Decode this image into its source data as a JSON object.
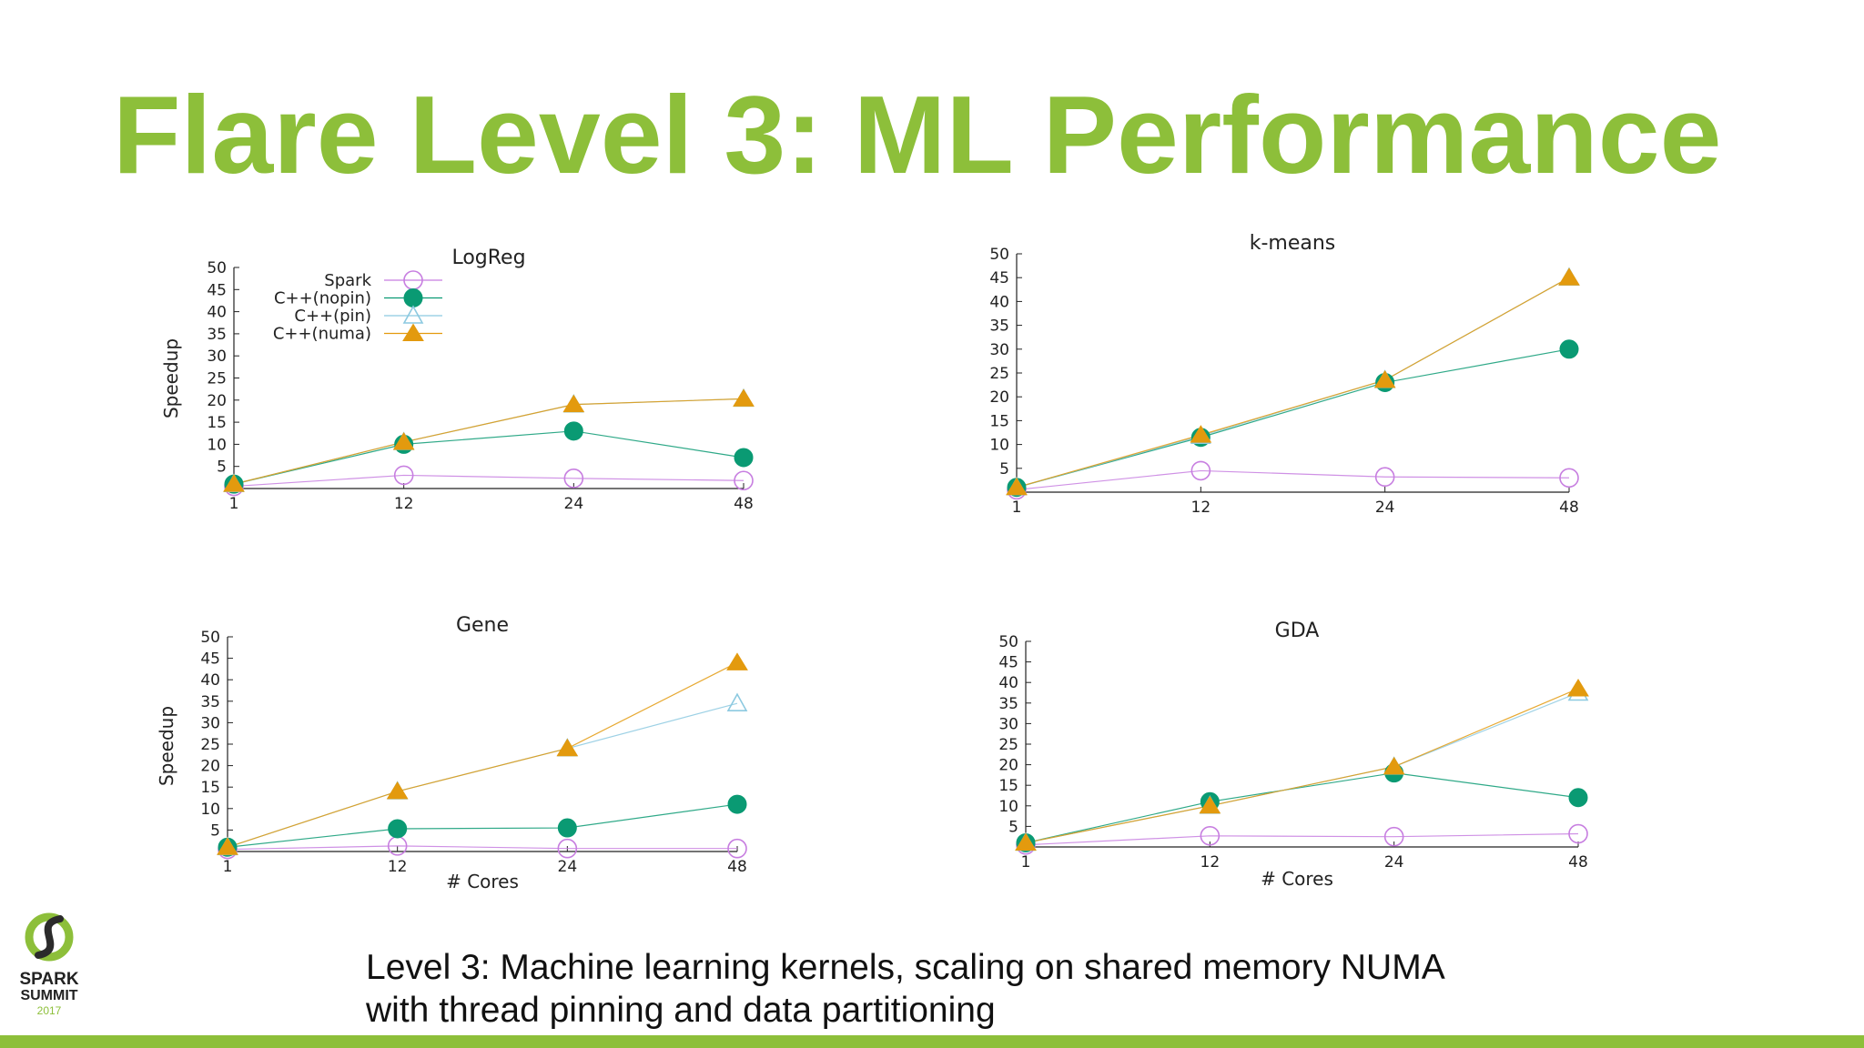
{
  "slide": {
    "title": "Flare Level 3: ML Performance",
    "caption_line1": "Level 3: Machine learning kernels, scaling on shared memory NUMA",
    "caption_line2": "with thread pinning and data partitioning",
    "accent_color": "#8dbf3a"
  },
  "logo": {
    "line1": "SPARK",
    "line2": "SUMMIT",
    "line3": "2017"
  },
  "chart_data": [
    {
      "id": "logreg",
      "type": "line",
      "title": "LogReg",
      "xlabel": "",
      "ylabel": "Speedup",
      "categories": [
        "1",
        "12",
        "24",
        "48"
      ],
      "yticks": [
        "5",
        "10",
        "15",
        "20",
        "25",
        "30",
        "35",
        "40",
        "45",
        "50"
      ],
      "ylim": [
        0,
        50
      ],
      "legend": "top-left",
      "series": [
        {
          "name": "Spark",
          "marker": "circle-open",
          "color": "#c77ee0",
          "values": [
            0.5,
            3,
            2.3,
            1.8
          ]
        },
        {
          "name": "C++(nopin)",
          "marker": "circle-filled",
          "color": "#0a9a73",
          "values": [
            1,
            10,
            13,
            7
          ]
        },
        {
          "name": "C++(pin)",
          "marker": "triangle-open",
          "color": "#8cc9e0",
          "values": [
            1,
            10.5,
            19,
            20.3
          ]
        },
        {
          "name": "C++(numa)",
          "marker": "triangle-filled",
          "color": "#e39a0e",
          "values": [
            1,
            10.5,
            19,
            20.3
          ]
        }
      ]
    },
    {
      "id": "kmeans",
      "type": "line",
      "title": "k-means",
      "xlabel": "",
      "ylabel": "",
      "categories": [
        "1",
        "12",
        "24",
        "48"
      ],
      "yticks": [
        "5",
        "10",
        "15",
        "20",
        "25",
        "30",
        "35",
        "40",
        "45",
        "50"
      ],
      "ylim": [
        0,
        50
      ],
      "series": [
        {
          "name": "Spark",
          "marker": "circle-open",
          "color": "#c77ee0",
          "values": [
            0.5,
            4.5,
            3.2,
            3
          ]
        },
        {
          "name": "C++(nopin)",
          "marker": "circle-filled",
          "color": "#0a9a73",
          "values": [
            1,
            11.5,
            23,
            30
          ]
        },
        {
          "name": "C++(pin)",
          "marker": "triangle-open",
          "color": "#8cc9e0",
          "values": [
            1,
            11.8,
            23.5,
            45
          ]
        },
        {
          "name": "C++(numa)",
          "marker": "triangle-filled",
          "color": "#e39a0e",
          "values": [
            1,
            12,
            23.5,
            45
          ]
        }
      ]
    },
    {
      "id": "gene",
      "type": "line",
      "title": "Gene",
      "xlabel": "# Cores",
      "ylabel": "Speedup",
      "categories": [
        "1",
        "12",
        "24",
        "48"
      ],
      "yticks": [
        "5",
        "10",
        "15",
        "20",
        "25",
        "30",
        "35",
        "40",
        "45",
        "50"
      ],
      "ylim": [
        0,
        50
      ],
      "series": [
        {
          "name": "Spark",
          "marker": "circle-open",
          "color": "#c77ee0",
          "values": [
            0.5,
            1.3,
            0.7,
            0.7
          ]
        },
        {
          "name": "C++(nopin)",
          "marker": "circle-filled",
          "color": "#0a9a73",
          "values": [
            1,
            5.3,
            5.5,
            11
          ]
        },
        {
          "name": "C++(pin)",
          "marker": "triangle-open",
          "color": "#8cc9e0",
          "values": [
            1,
            14,
            24,
            34.5
          ]
        },
        {
          "name": "C++(numa)",
          "marker": "triangle-filled",
          "color": "#e39a0e",
          "values": [
            1,
            14,
            24,
            44
          ]
        }
      ]
    },
    {
      "id": "gda",
      "type": "line",
      "title": "GDA",
      "xlabel": "# Cores",
      "ylabel": "",
      "categories": [
        "1",
        "12",
        "24",
        "48"
      ],
      "yticks": [
        "5",
        "10",
        "15",
        "20",
        "25",
        "30",
        "35",
        "40",
        "45",
        "50"
      ],
      "ylim": [
        0,
        50
      ],
      "series": [
        {
          "name": "Spark",
          "marker": "circle-open",
          "color": "#c77ee0",
          "values": [
            0.5,
            2.7,
            2.5,
            3.2
          ]
        },
        {
          "name": "C++(nopin)",
          "marker": "circle-filled",
          "color": "#0a9a73",
          "values": [
            1,
            11,
            18,
            12
          ]
        },
        {
          "name": "C++(pin)",
          "marker": "triangle-open",
          "color": "#8cc9e0",
          "values": [
            1,
            10,
            19.5,
            37.5
          ]
        },
        {
          "name": "C++(numa)",
          "marker": "triangle-filled",
          "color": "#e39a0e",
          "values": [
            1,
            10,
            19.5,
            38.5
          ]
        }
      ]
    }
  ]
}
